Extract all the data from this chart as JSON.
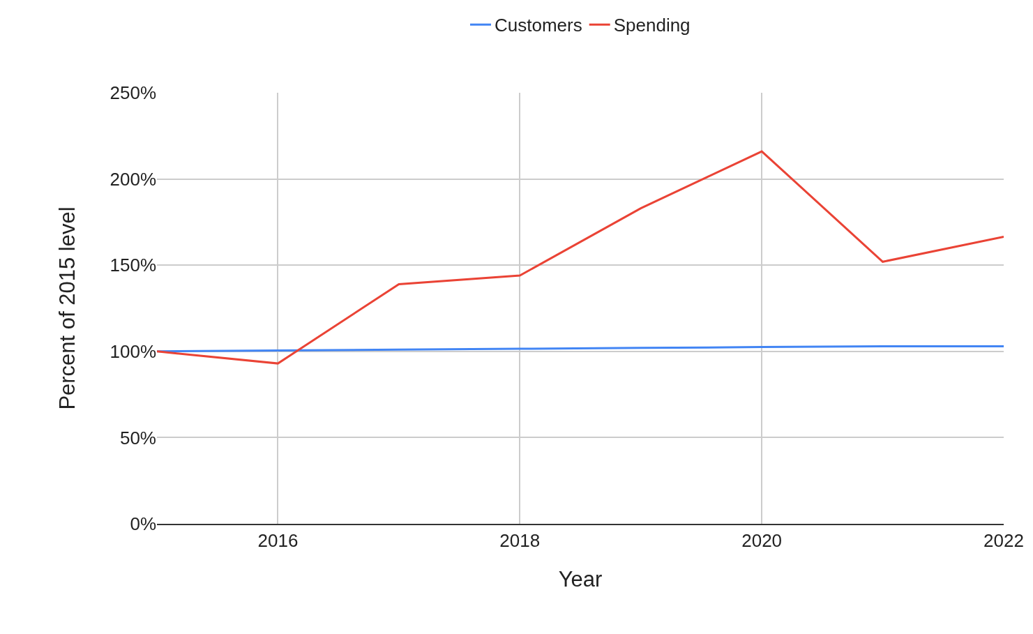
{
  "chart_data": {
    "type": "line",
    "xlabel": "Year",
    "ylabel": "Percent of 2015 level",
    "x": [
      2015,
      2016,
      2017,
      2018,
      2019,
      2020,
      2021,
      2022
    ],
    "series": [
      {
        "name": "Customers",
        "color": "#4285f4",
        "values": [
          100,
          100.5,
          101,
          101.5,
          102,
          102.5,
          103,
          103
        ]
      },
      {
        "name": "Spending",
        "color": "#ea4335",
        "values": [
          100,
          93,
          139,
          144,
          183,
          216,
          152,
          166.5
        ]
      }
    ],
    "xlim": [
      2015,
      2022
    ],
    "xticks": [
      2016,
      2018,
      2020,
      2022
    ],
    "ylim": [
      0,
      250
    ],
    "yticks": [
      {
        "value": 0,
        "label": "0%"
      },
      {
        "value": 50,
        "label": "50%"
      },
      {
        "value": 100,
        "label": "100%"
      },
      {
        "value": 150,
        "label": "150%"
      },
      {
        "value": 200,
        "label": "200%"
      },
      {
        "value": 250,
        "label": "250%"
      }
    ],
    "grid": true,
    "legend": "top",
    "marker": "none",
    "line_style": "solid"
  }
}
